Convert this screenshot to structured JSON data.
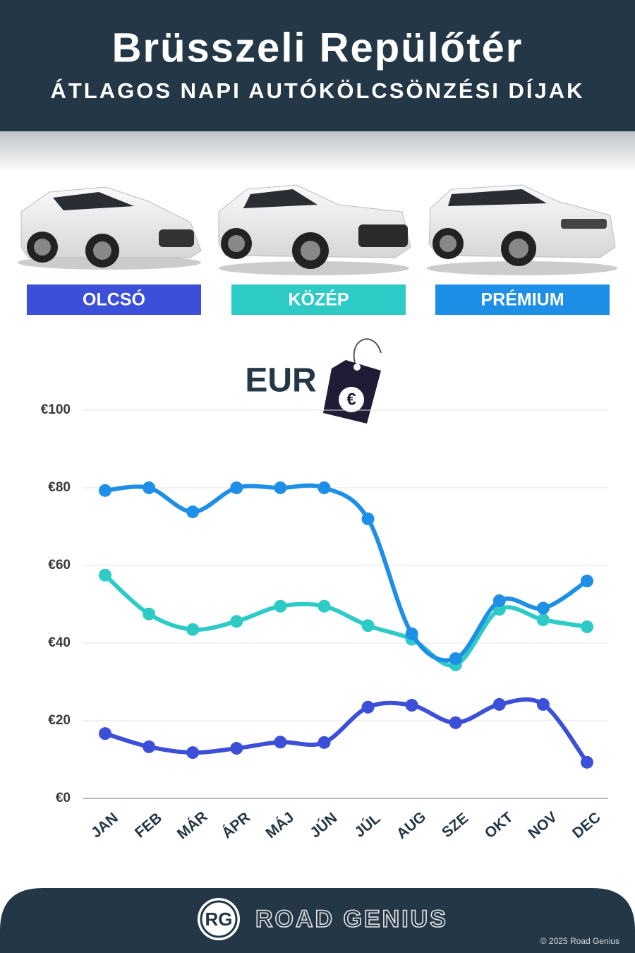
{
  "chart_data": {
    "type": "line",
    "title": "Brüsszeli Repülőtér",
    "subtitle": "ÁTLAGOS NAPI AUTÓKÖLCSÖNZÉSI DÍJAK",
    "unit_label": "EUR",
    "unit_symbol": "€",
    "categories": [
      "JAN",
      "FEB",
      "MÁR",
      "ÁPR",
      "MÁJ",
      "JÚN",
      "JÚL",
      "AUG",
      "SZE",
      "OKT",
      "NOV",
      "DEC"
    ],
    "series": [
      {
        "name": "OLCSÓ",
        "color": "#3b4fd8",
        "values": [
          16.7,
          13.3,
          11.8,
          12.9,
          14.5,
          14.4,
          23.5,
          24,
          19.5,
          24.2,
          24.2,
          9.3
        ]
      },
      {
        "name": "KÖZÉP",
        "color": "#2ecbc6",
        "values": [
          57.5,
          47.5,
          43.5,
          45.6,
          49.5,
          49.5,
          44.5,
          41,
          34.4,
          48.7,
          46,
          44.2
        ]
      },
      {
        "name": "PRÉMIUM",
        "color": "#1e8fe6",
        "values": [
          79.3,
          80,
          73.8,
          80,
          80,
          80,
          72,
          42.4,
          36,
          50.9,
          49,
          56
        ]
      }
    ],
    "ylim": [
      0,
      100
    ],
    "yticks": [
      {
        "value": 0,
        "label": "€0"
      },
      {
        "value": 20,
        "label": "€20"
      },
      {
        "value": 40,
        "label": "€40"
      },
      {
        "value": 60,
        "label": "€60"
      },
      {
        "value": 80,
        "label": "€80"
      },
      {
        "value": 100,
        "label": "€100"
      }
    ],
    "grid": true
  },
  "footer": {
    "logo": "RG",
    "brand": "ROAD GENIUS",
    "copyright": "© 2025 Road Genius"
  }
}
